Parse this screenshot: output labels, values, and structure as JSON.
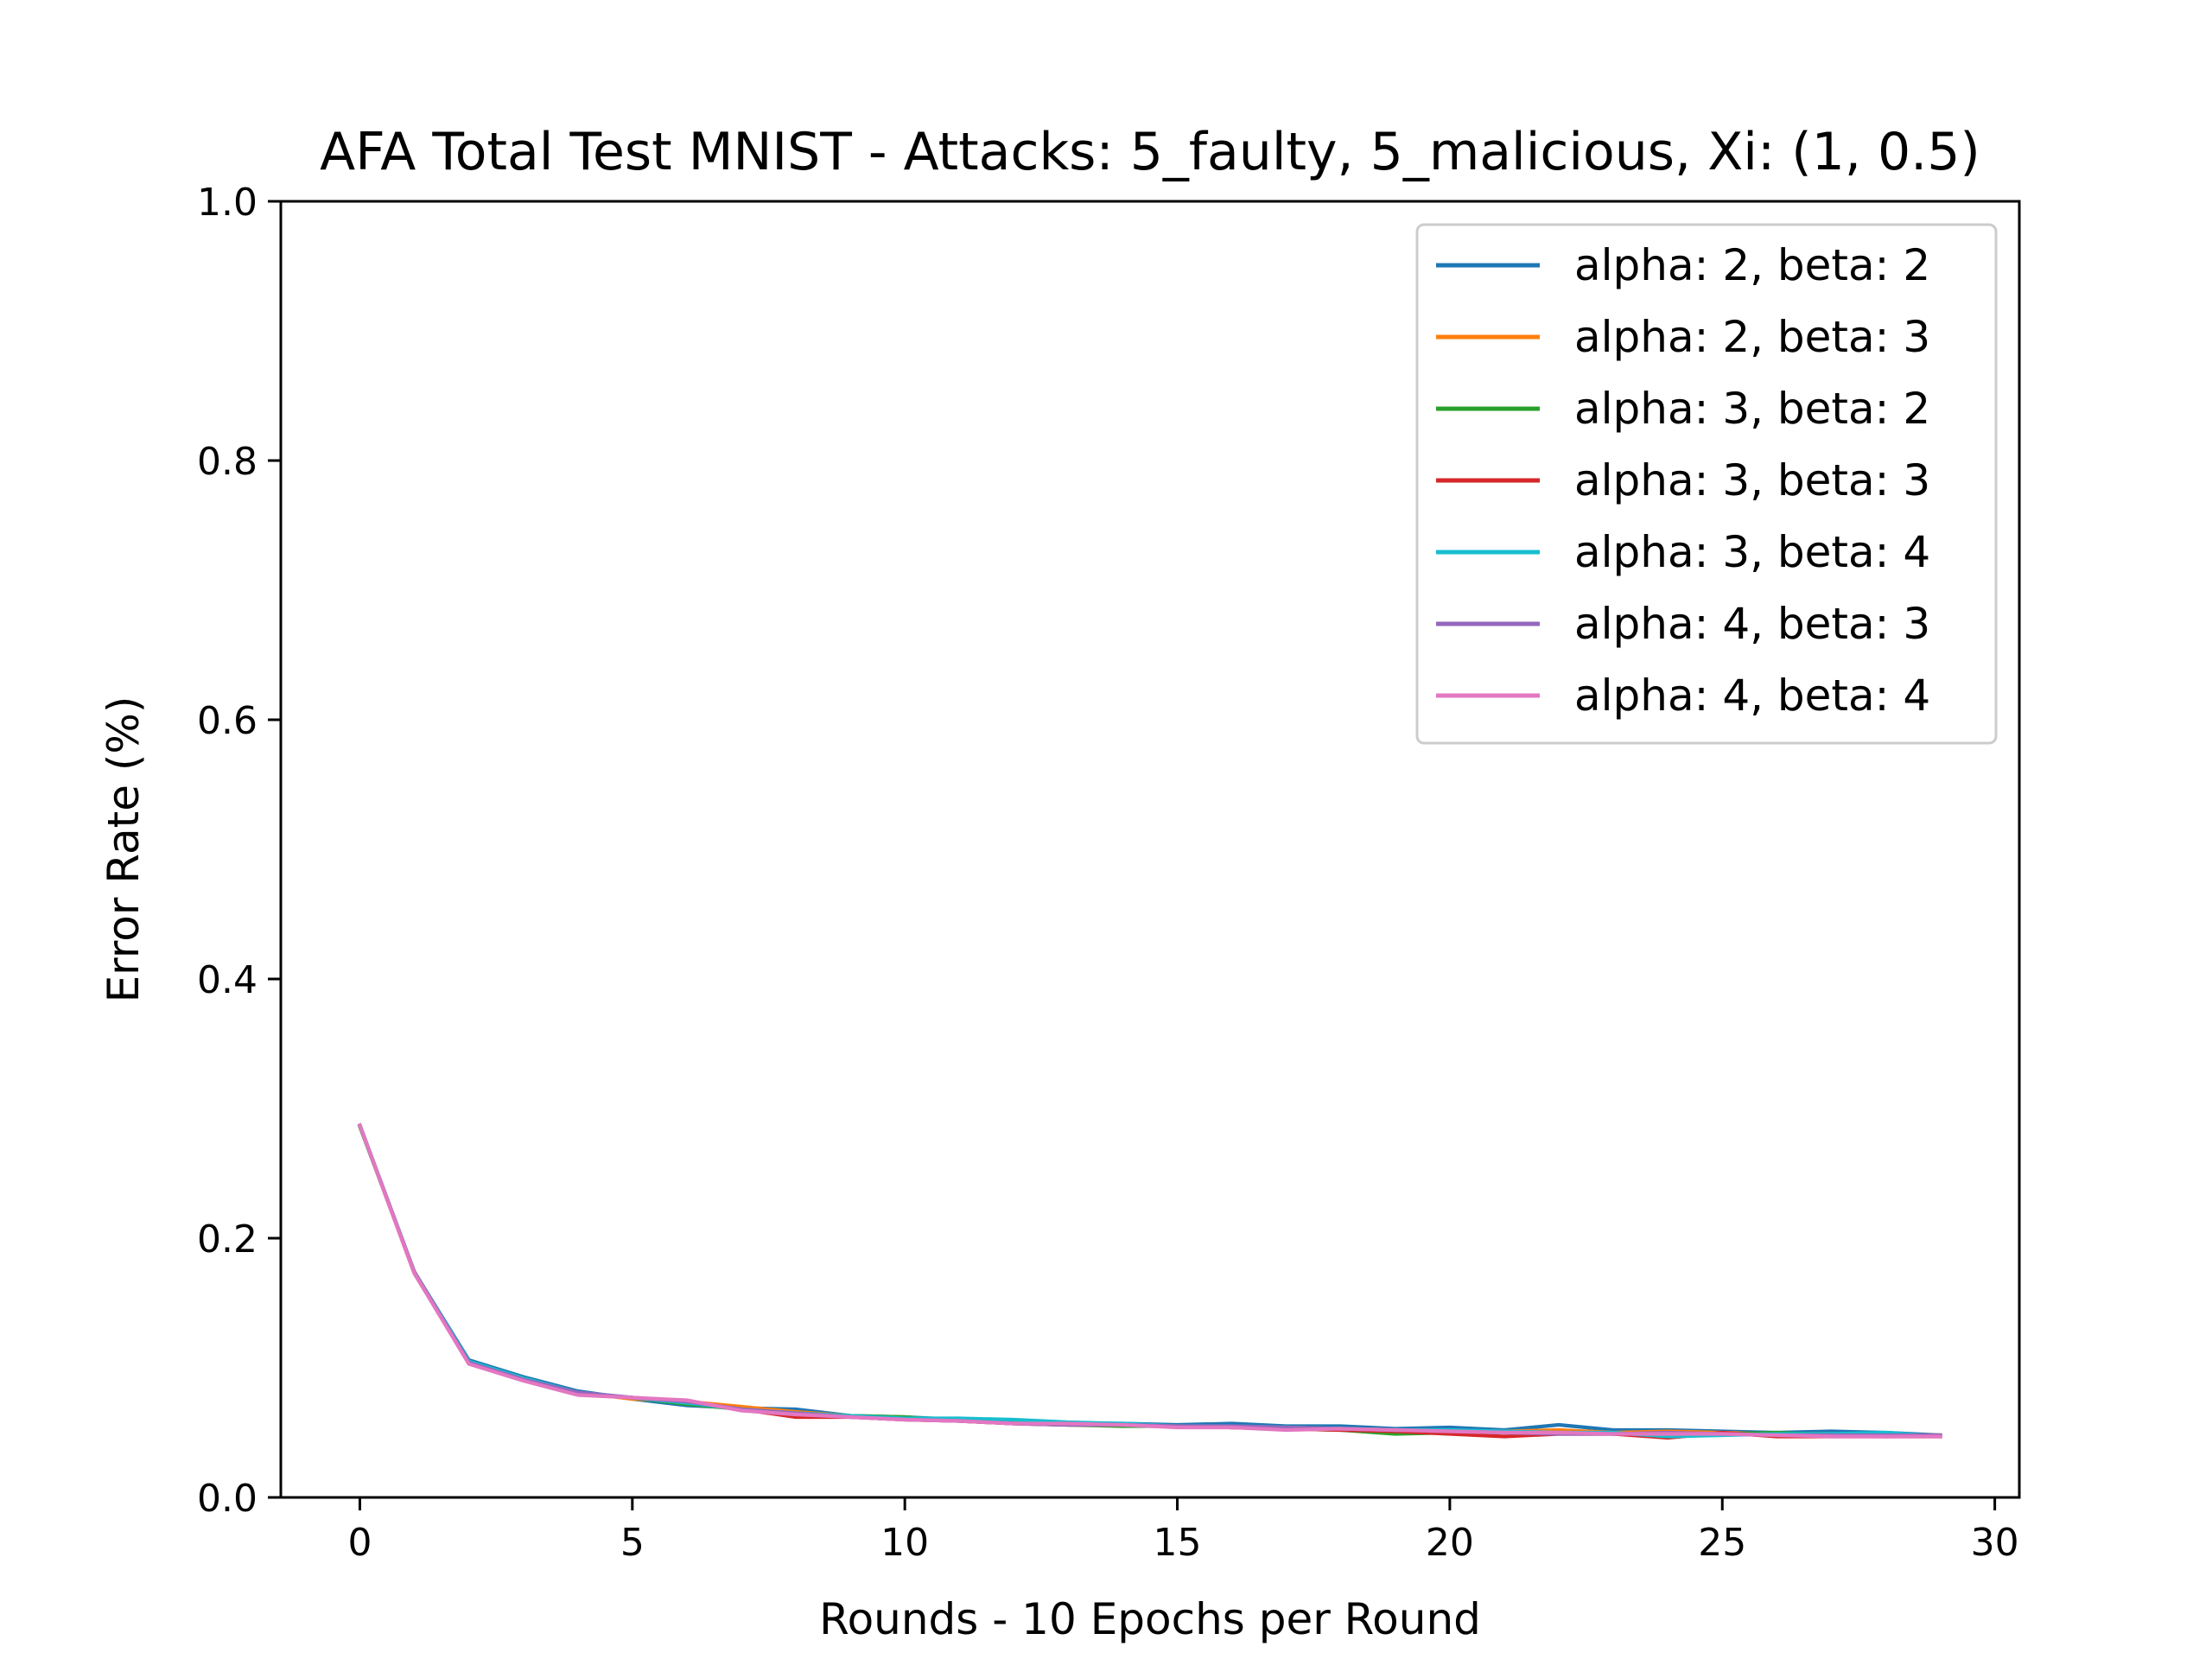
{
  "chart_data": {
    "type": "line",
    "title": "AFA Total Test MNIST - Attacks: 5_faulty, 5_malicious, Xi: (1, 0.5)",
    "xlabel": "Rounds - 10 Epochs per Round",
    "ylabel": "Error Rate (%)",
    "xlim": [
      -1.45,
      30.45
    ],
    "ylim": [
      0.0,
      1.0
    ],
    "xticks": [
      0,
      5,
      10,
      15,
      20,
      25,
      30
    ],
    "xtick_labels": [
      "0",
      "5",
      "10",
      "15",
      "20",
      "25",
      "30"
    ],
    "yticks": [
      0.0,
      0.2,
      0.4,
      0.6,
      0.8,
      1.0
    ],
    "ytick_labels": [
      "0.0",
      "0.2",
      "0.4",
      "0.6",
      "0.8",
      "1.0"
    ],
    "grid": false,
    "legend_position": "top-right",
    "x": [
      0,
      1,
      2,
      3,
      4,
      5,
      6,
      7,
      8,
      9,
      10,
      11,
      12,
      13,
      14,
      15,
      16,
      17,
      18,
      19,
      20,
      21,
      22,
      23,
      24,
      25,
      26,
      27,
      28,
      29
    ],
    "series": [
      {
        "name": "alpha: 2, beta: 2",
        "color": "#1f77b4",
        "values": [
          0.287,
          0.174,
          0.106,
          0.093,
          0.082,
          0.076,
          0.071,
          0.069,
          0.068,
          0.063,
          0.062,
          0.06,
          0.059,
          0.057,
          0.057,
          0.056,
          0.057,
          0.055,
          0.055,
          0.053,
          0.054,
          0.052,
          0.056,
          0.052,
          0.052,
          0.051,
          0.05,
          0.051,
          0.05,
          0.048
        ]
      },
      {
        "name": "alpha: 2, beta: 3",
        "color": "#ff7f0e",
        "values": [
          0.287,
          0.173,
          0.104,
          0.091,
          0.081,
          0.076,
          0.074,
          0.07,
          0.066,
          0.063,
          0.061,
          0.06,
          0.058,
          0.057,
          0.056,
          0.055,
          0.054,
          0.054,
          0.053,
          0.052,
          0.051,
          0.051,
          0.052,
          0.05,
          0.051,
          0.05,
          0.049,
          0.049,
          0.048,
          0.048
        ]
      },
      {
        "name": "alpha: 3, beta: 2",
        "color": "#2ca02c",
        "values": [
          0.286,
          0.174,
          0.104,
          0.092,
          0.08,
          0.077,
          0.072,
          0.068,
          0.065,
          0.063,
          0.062,
          0.059,
          0.057,
          0.056,
          0.055,
          0.055,
          0.054,
          0.053,
          0.052,
          0.049,
          0.05,
          0.05,
          0.05,
          0.049,
          0.048,
          0.049,
          0.05,
          0.048,
          0.047,
          0.048
        ]
      },
      {
        "name": "alpha: 3, beta: 3",
        "color": "#d62728",
        "values": [
          0.287,
          0.173,
          0.104,
          0.091,
          0.08,
          0.077,
          0.074,
          0.068,
          0.062,
          0.062,
          0.06,
          0.059,
          0.057,
          0.056,
          0.056,
          0.055,
          0.054,
          0.053,
          0.052,
          0.051,
          0.049,
          0.047,
          0.049,
          0.049,
          0.046,
          0.05,
          0.047,
          0.047,
          0.047,
          0.047
        ]
      },
      {
        "name": "alpha: 3, beta: 4",
        "color": "#17becf",
        "values": [
          0.287,
          0.174,
          0.105,
          0.092,
          0.081,
          0.077,
          0.073,
          0.068,
          0.065,
          0.063,
          0.061,
          0.061,
          0.06,
          0.058,
          0.057,
          0.055,
          0.055,
          0.054,
          0.053,
          0.052,
          0.052,
          0.051,
          0.05,
          0.05,
          0.047,
          0.048,
          0.049,
          0.049,
          0.05,
          0.047
        ]
      },
      {
        "name": "alpha: 4, beta: 3",
        "color": "#9467bd",
        "values": [
          0.287,
          0.174,
          0.104,
          0.091,
          0.081,
          0.077,
          0.074,
          0.068,
          0.065,
          0.062,
          0.06,
          0.059,
          0.057,
          0.056,
          0.056,
          0.055,
          0.055,
          0.054,
          0.053,
          0.052,
          0.051,
          0.05,
          0.049,
          0.049,
          0.05,
          0.049,
          0.048,
          0.048,
          0.048,
          0.048
        ]
      },
      {
        "name": "alpha: 4, beta: 4",
        "color": "#e377c2",
        "values": [
          0.287,
          0.173,
          0.103,
          0.09,
          0.079,
          0.077,
          0.075,
          0.067,
          0.064,
          0.062,
          0.06,
          0.059,
          0.057,
          0.057,
          0.056,
          0.054,
          0.054,
          0.052,
          0.053,
          0.052,
          0.051,
          0.05,
          0.05,
          0.049,
          0.049,
          0.049,
          0.048,
          0.047,
          0.047,
          0.047
        ]
      }
    ]
  }
}
